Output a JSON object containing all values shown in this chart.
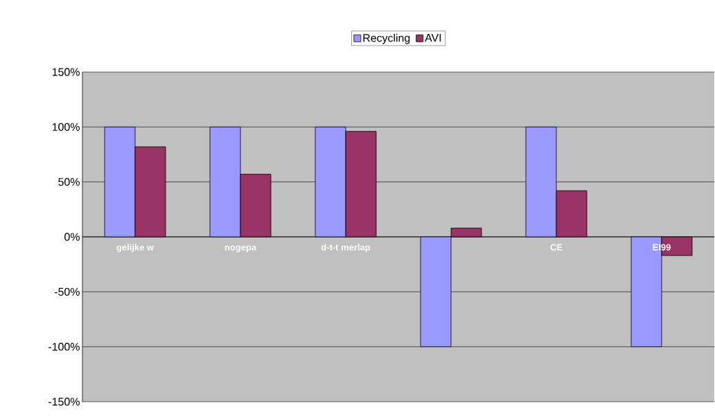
{
  "chart_data": {
    "type": "bar",
    "categories": [
      "gelijke w",
      "nogepa",
      "d-t-t merlap",
      null,
      "CE",
      "EI99"
    ],
    "series": [
      {
        "name": "Recycling",
        "color": "#9999ff",
        "values": [
          100,
          100,
          100,
          -100,
          100,
          -100
        ]
      },
      {
        "name": "AVI",
        "color": "#993366",
        "values": [
          82,
          57,
          96,
          8,
          42,
          -17
        ]
      }
    ],
    "ylim": [
      -150,
      150
    ],
    "yticks": [
      {
        "value": -150,
        "label": "-150%"
      },
      {
        "value": -100,
        "label": "-100%"
      },
      {
        "value": -50,
        "label": "-50%"
      },
      {
        "value": 0,
        "label": "0%"
      },
      {
        "value": 50,
        "label": "50%"
      },
      {
        "value": 100,
        "label": "100%"
      },
      {
        "value": 150,
        "label": "150%"
      }
    ],
    "grid": "y",
    "legend": "top"
  }
}
